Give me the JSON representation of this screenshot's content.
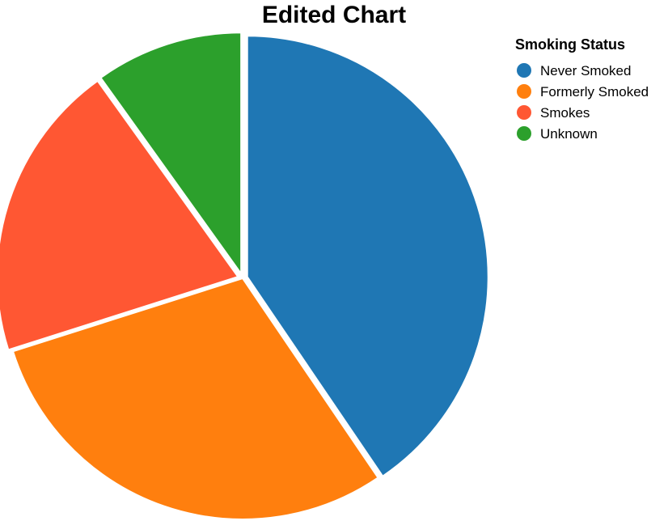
{
  "chart_data": {
    "type": "pie",
    "title": "Edited Chart",
    "legend_title": "Smoking Status",
    "legend_position": "top-right",
    "categories": [
      "Never Smoked",
      "Formerly Smoked",
      "Smokes",
      "Unknown"
    ],
    "values": [
      40.5,
      29.6,
      20.0,
      9.9
    ],
    "colors": [
      "#1f77b4",
      "#ff7f0e",
      "#ff5733",
      "#2ca02c"
    ],
    "exploded": [
      "Never Smoked",
      "Smokes",
      "Unknown"
    ]
  }
}
